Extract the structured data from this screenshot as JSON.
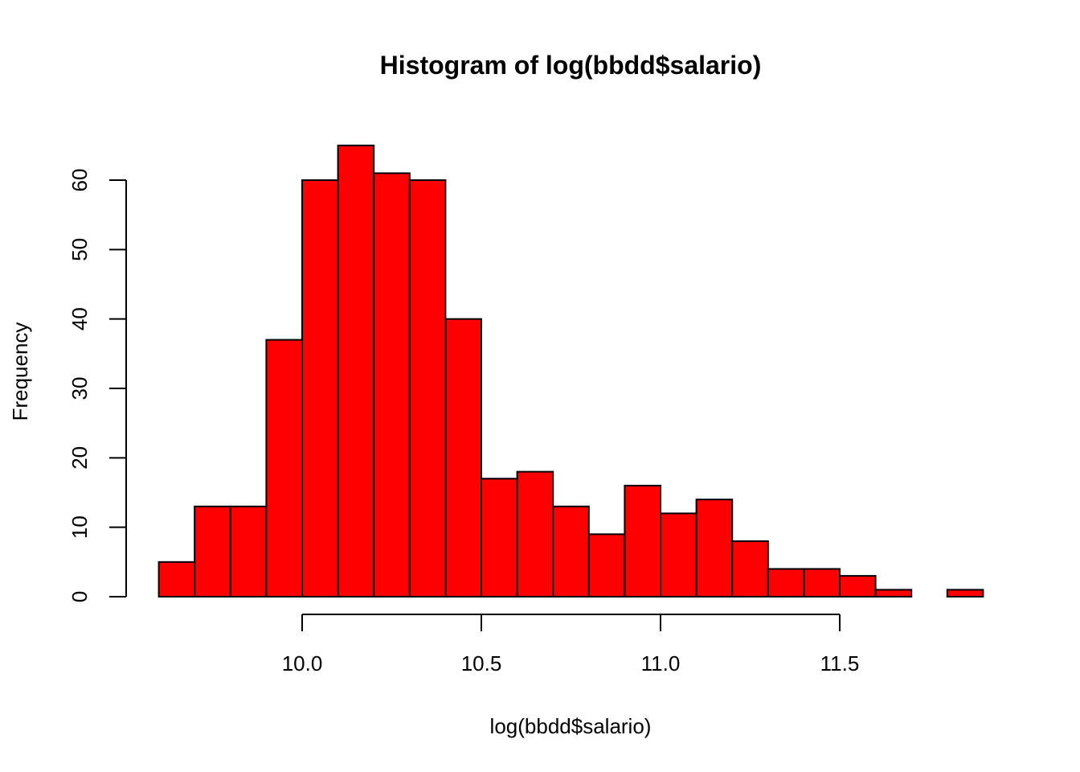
{
  "chart_data": {
    "type": "bar",
    "title": "Histogram of log(bbdd$salario)",
    "xlabel": "log(bbdd$salario)",
    "ylabel": "Frequency",
    "bin_edges": [
      9.6,
      9.7,
      9.8,
      9.9,
      10.0,
      10.1,
      10.2,
      10.3,
      10.4,
      10.5,
      10.6,
      10.7,
      10.8,
      10.9,
      11.0,
      11.1,
      11.2,
      11.3,
      11.4,
      11.5,
      11.6,
      11.7,
      11.8,
      11.9
    ],
    "values": [
      5,
      13,
      13,
      37,
      60,
      65,
      61,
      60,
      40,
      17,
      18,
      13,
      9,
      16,
      12,
      14,
      8,
      4,
      4,
      3,
      1,
      0,
      1
    ],
    "xticks": [
      10.0,
      10.5,
      11.0,
      11.5
    ],
    "xtick_labels": [
      "10.0",
      "10.5",
      "11.0",
      "11.5"
    ],
    "yticks": [
      0,
      10,
      20,
      30,
      40,
      50,
      60
    ],
    "ytick_labels": [
      "0",
      "10",
      "20",
      "30",
      "40",
      "50",
      "60"
    ],
    "bar_color": "#ff0000",
    "grid": false,
    "legend": "none"
  }
}
